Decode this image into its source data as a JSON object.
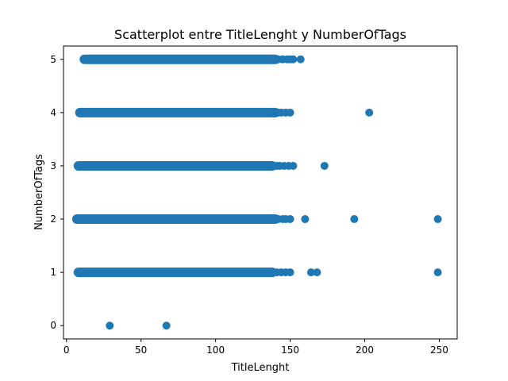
{
  "chart_data": {
    "type": "scatter",
    "title": "Scatterplot entre TitleLenght y NumberOfTags",
    "xlabel": "TitleLenght",
    "ylabel": "NumberOfTags",
    "xlim": [
      -2,
      262
    ],
    "ylim": [
      -0.25,
      5.25
    ],
    "xticks": [
      0,
      50,
      100,
      150,
      200,
      250
    ],
    "yticks": [
      0,
      1,
      2,
      3,
      4,
      5
    ],
    "grid": false,
    "marker_color": "#1f77b4",
    "series": [
      {
        "bands": [
          {
            "y": 5,
            "x_from": 12,
            "x_to": 140
          },
          {
            "y": 4,
            "x_from": 9,
            "x_to": 140
          },
          {
            "y": 3,
            "x_from": 8,
            "x_to": 138
          },
          {
            "y": 2,
            "x_from": 7,
            "x_to": 140
          },
          {
            "y": 1,
            "x_from": 8,
            "x_to": 138
          }
        ],
        "points": [
          {
            "x": 142,
            "y": 5
          },
          {
            "x": 145,
            "y": 5
          },
          {
            "x": 148,
            "y": 5
          },
          {
            "x": 150,
            "y": 5
          },
          {
            "x": 152,
            "y": 5
          },
          {
            "x": 157,
            "y": 5
          },
          {
            "x": 142,
            "y": 4
          },
          {
            "x": 144,
            "y": 4
          },
          {
            "x": 147,
            "y": 4
          },
          {
            "x": 150,
            "y": 4
          },
          {
            "x": 203,
            "y": 4
          },
          {
            "x": 141,
            "y": 3
          },
          {
            "x": 143,
            "y": 3
          },
          {
            "x": 146,
            "y": 3
          },
          {
            "x": 149,
            "y": 3
          },
          {
            "x": 152,
            "y": 3
          },
          {
            "x": 173,
            "y": 3
          },
          {
            "x": 142,
            "y": 2
          },
          {
            "x": 145,
            "y": 2
          },
          {
            "x": 147,
            "y": 2
          },
          {
            "x": 150,
            "y": 2
          },
          {
            "x": 160,
            "y": 2
          },
          {
            "x": 193,
            "y": 2
          },
          {
            "x": 249,
            "y": 2
          },
          {
            "x": 141,
            "y": 1
          },
          {
            "x": 144,
            "y": 1
          },
          {
            "x": 147,
            "y": 1
          },
          {
            "x": 150,
            "y": 1
          },
          {
            "x": 164,
            "y": 1
          },
          {
            "x": 168,
            "y": 1
          },
          {
            "x": 249,
            "y": 1
          },
          {
            "x": 29,
            "y": 0
          },
          {
            "x": 67,
            "y": 0
          }
        ]
      }
    ]
  }
}
